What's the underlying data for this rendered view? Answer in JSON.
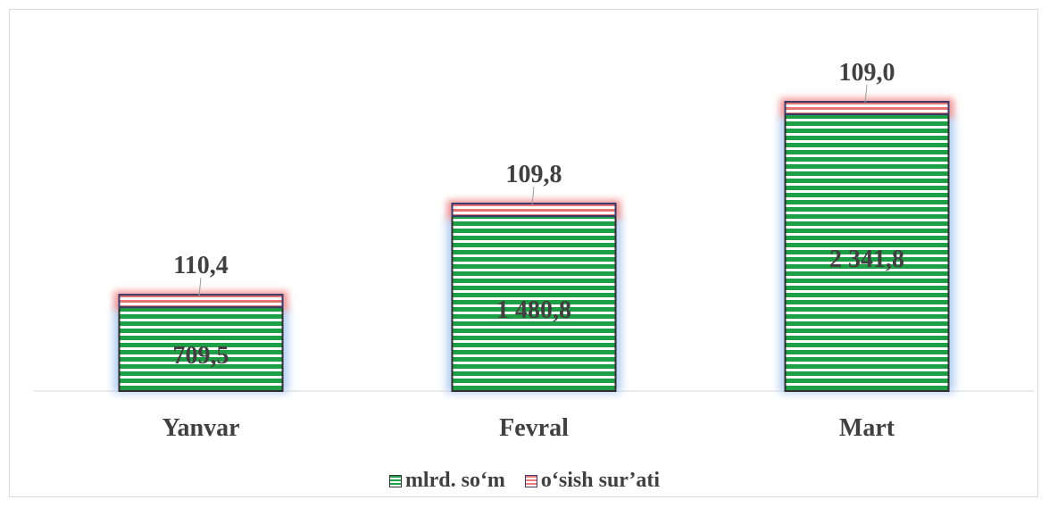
{
  "chart_data": {
    "type": "bar",
    "stacked": true,
    "categories": [
      "Yanvar",
      "Fevral",
      "Mart"
    ],
    "series": [
      {
        "name": "mlrd. so‘m",
        "values": [
          709.5,
          1480.8,
          2341.8
        ],
        "labels": [
          "709,5",
          "1 480,8",
          "2 341,8"
        ],
        "color": "#1fa347"
      },
      {
        "name": "o‘sish sur’ati",
        "values": [
          110.4,
          109.8,
          109.0
        ],
        "labels": [
          "110,4",
          "109,8",
          "109,0"
        ],
        "color": "#e87a7a"
      }
    ],
    "title": "",
    "xlabel": "",
    "ylabel": "",
    "ylim": [
      0,
      2600
    ],
    "grid": false,
    "legend": "bottom"
  }
}
